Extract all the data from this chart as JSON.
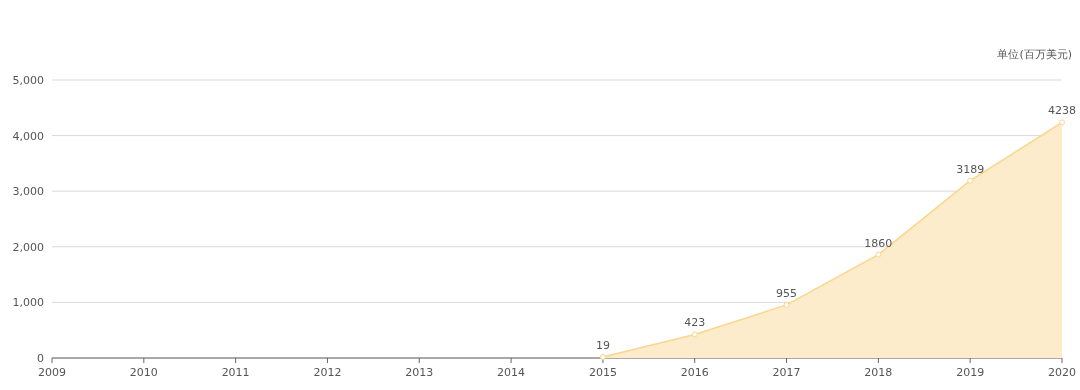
{
  "chart_data": {
    "type": "area",
    "ylabel": "单位(百万美元)",
    "categories": [
      "2009",
      "2010",
      "2011",
      "2012",
      "2013",
      "2014",
      "2015",
      "2016",
      "2017",
      "2018",
      "2019",
      "2020"
    ],
    "series": [
      {
        "color": "#fad58c",
        "values": [
          null,
          null,
          null,
          null,
          null,
          null,
          19,
          423,
          955,
          1860,
          3189,
          4238
        ]
      }
    ],
    "ylim": [
      0,
      5000
    ],
    "yticks": [
      0,
      {
        "value": 1000,
        "label": "1,000"
      },
      {
        "value": 2000,
        "label": "2,000"
      },
      {
        "value": 3000,
        "label": "3,000"
      },
      {
        "value": 4000,
        "label": "4,000"
      },
      {
        "value": 5000,
        "label": "5,000"
      }
    ],
    "grid": "y",
    "marker": "circle",
    "data_labels": true
  }
}
